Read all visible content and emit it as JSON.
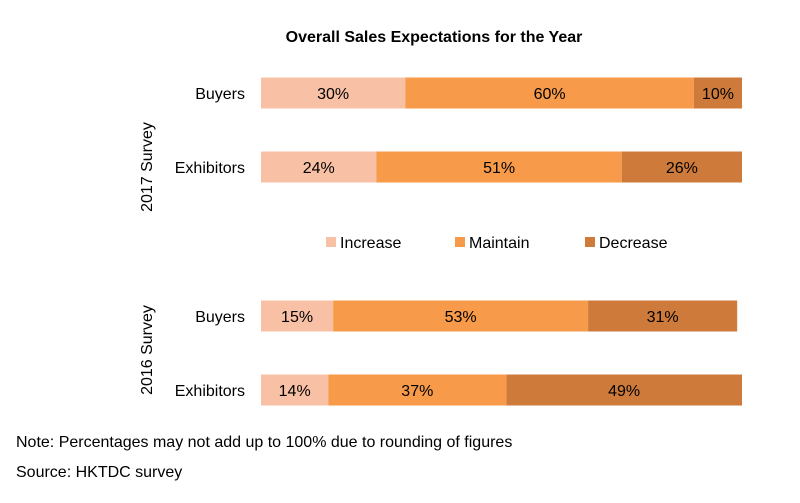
{
  "chart_data": {
    "type": "bar",
    "orientation": "horizontal",
    "stacked": true,
    "title": "Overall Sales Expectations for the Year",
    "xlabel": "",
    "ylabel": "",
    "xlim": [
      0,
      100
    ],
    "grid": false,
    "legend_position": "middle",
    "groups": [
      "2017 Survey",
      "2016 Survey"
    ],
    "rows": [
      {
        "group": "2017 Survey",
        "category": "Buyers",
        "values": [
          30,
          60,
          10
        ]
      },
      {
        "group": "2017 Survey",
        "category": "Exhibitors",
        "values": [
          24,
          51,
          26
        ]
      },
      {
        "group": "2016 Survey",
        "category": "Buyers",
        "values": [
          15,
          53,
          31
        ]
      },
      {
        "group": "2016 Survey",
        "category": "Exhibitors",
        "values": [
          14,
          37,
          49
        ]
      }
    ],
    "series": [
      {
        "name": "Increase",
        "color": "#f8c0a4"
      },
      {
        "name": "Maintain",
        "color": "#f79a4a"
      },
      {
        "name": "Decrease",
        "color": "#cd7a3a"
      }
    ]
  },
  "footer": {
    "note": "Note: Percentages may not add up to 100% due to rounding of figures",
    "source": "Source: HKTDC survey"
  }
}
